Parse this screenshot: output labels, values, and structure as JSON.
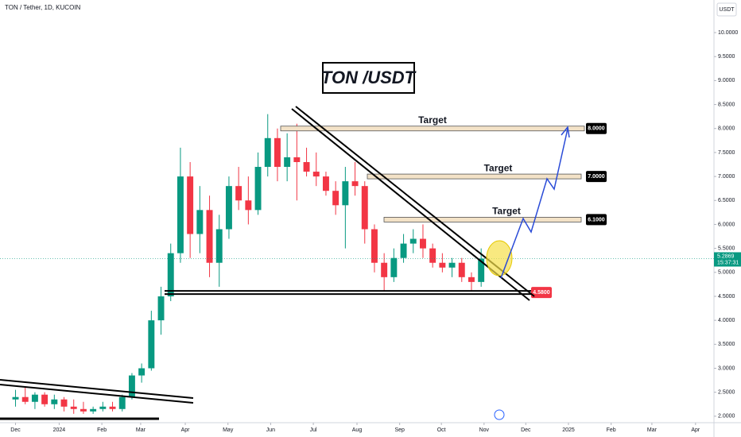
{
  "chart_data": {
    "type": "candlestick",
    "title": "TON / Tether, 1D, KUCOIN",
    "annotation": "TON /USDT",
    "currency": "USDT",
    "categories": [
      null,
      null,
      null,
      null,
      null,
      null,
      null,
      null,
      null,
      null,
      null,
      null,
      null,
      null,
      null,
      null,
      null,
      null,
      null,
      null,
      null,
      null,
      null,
      null,
      null,
      null,
      null,
      null,
      null,
      null,
      null,
      null,
      null,
      null,
      null,
      null,
      null,
      null,
      null,
      null,
      null,
      null,
      null,
      null,
      null,
      null,
      null,
      null,
      null
    ],
    "open": [
      2.35,
      2.4,
      2.3,
      2.45,
      2.25,
      2.35,
      2.2,
      2.15,
      2.1,
      2.15,
      2.2,
      2.15,
      2.4,
      2.85,
      3.0,
      4.0,
      4.5,
      5.4,
      7.0,
      5.8,
      6.3,
      5.2,
      5.9,
      6.8,
      6.5,
      6.3,
      7.2,
      7.8,
      7.2,
      7.4,
      7.3,
      7.1,
      7.0,
      6.7,
      6.4,
      6.9,
      6.8,
      5.9,
      5.2,
      4.9,
      5.3,
      5.6,
      5.7,
      5.5,
      5.2,
      5.1,
      5.2,
      4.9,
      4.8
    ],
    "high": [
      2.55,
      2.6,
      2.5,
      2.5,
      2.45,
      2.4,
      2.35,
      2.3,
      2.2,
      2.3,
      2.3,
      2.45,
      2.9,
      3.1,
      4.2,
      4.7,
      5.6,
      7.6,
      7.3,
      6.8,
      6.6,
      6.2,
      7.0,
      7.2,
      7.0,
      7.5,
      8.3,
      8.0,
      7.9,
      8.1,
      7.6,
      7.5,
      7.1,
      6.9,
      7.2,
      7.3,
      6.9,
      6.0,
      5.4,
      5.5,
      5.8,
      5.9,
      6.0,
      5.6,
      5.4,
      5.3,
      5.3,
      5.0,
      5.5
    ],
    "low": [
      2.2,
      2.25,
      2.15,
      2.2,
      2.15,
      2.1,
      2.05,
      2.05,
      2.05,
      2.1,
      2.1,
      2.1,
      2.35,
      2.7,
      2.95,
      3.7,
      4.4,
      5.2,
      5.3,
      5.4,
      4.9,
      4.7,
      5.7,
      6.3,
      6.0,
      6.2,
      7.0,
      6.9,
      6.9,
      6.5,
      7.0,
      6.8,
      6.6,
      6.2,
      5.5,
      6.6,
      5.6,
      5.0,
      4.6,
      4.8,
      5.2,
      5.4,
      5.3,
      5.1,
      5.0,
      4.9,
      4.8,
      4.6,
      4.7
    ],
    "close": [
      2.4,
      2.3,
      2.45,
      2.25,
      2.35,
      2.2,
      2.15,
      2.1,
      2.15,
      2.2,
      2.15,
      2.4,
      2.85,
      3.0,
      4.0,
      4.5,
      5.4,
      7.0,
      5.8,
      6.3,
      5.2,
      5.9,
      6.8,
      6.5,
      6.3,
      7.2,
      7.8,
      7.2,
      7.4,
      7.3,
      7.1,
      7.0,
      6.7,
      6.4,
      6.9,
      6.8,
      5.9,
      5.2,
      4.9,
      5.3,
      5.6,
      5.7,
      5.5,
      5.2,
      5.1,
      5.2,
      4.9,
      4.8,
      5.2869
    ],
    "up_color": "#089981",
    "down_color": "#f23645",
    "xlim": [
      -1.6,
      72
    ],
    "xticks": [
      {
        "value": 0,
        "label": "Dec"
      },
      {
        "value": 4.5,
        "label": "2024"
      },
      {
        "value": 8.9,
        "label": "Feb"
      },
      {
        "value": 12.9,
        "label": "Mar"
      },
      {
        "value": 17.5,
        "label": "Apr"
      },
      {
        "value": 21.9,
        "label": "May"
      },
      {
        "value": 26.3,
        "label": "Jun"
      },
      {
        "value": 30.7,
        "label": "Jul"
      },
      {
        "value": 35.2,
        "label": "Aug"
      },
      {
        "value": 39.6,
        "label": "Sep"
      },
      {
        "value": 43.9,
        "label": "Oct"
      },
      {
        "value": 48.3,
        "label": "Nov"
      },
      {
        "value": 52.6,
        "label": "Dec"
      },
      {
        "value": 57,
        "label": "2025"
      },
      {
        "value": 61.4,
        "label": "Feb"
      },
      {
        "value": 65.6,
        "label": "Mar"
      },
      {
        "value": 70.1,
        "label": "Apr"
      }
    ],
    "ylim": [
      1.865,
      10.68
    ],
    "yticks": [
      {
        "value": 2,
        "label": "2.0000"
      },
      {
        "value": 2.5,
        "label": "2.5000"
      },
      {
        "value": 3,
        "label": "3.0000"
      },
      {
        "value": 3.5,
        "label": "3.5000"
      },
      {
        "value": 4,
        "label": "4.0000"
      },
      {
        "value": 4.5,
        "label": "4.5000"
      },
      {
        "value": 5,
        "label": "5.0000"
      },
      {
        "value": 5.5,
        "label": "5.5000"
      },
      {
        "value": 6,
        "label": "6.0000"
      },
      {
        "value": 6.5,
        "label": "6.5000"
      },
      {
        "value": 7,
        "label": "7.0000"
      },
      {
        "value": 7.5,
        "label": "7.5000"
      },
      {
        "value": 8,
        "label": "8.0000"
      },
      {
        "value": 8.5,
        "label": "8.5000"
      },
      {
        "value": 9,
        "label": "9.0000"
      },
      {
        "value": 9.5,
        "label": "9.5000"
      },
      {
        "value": 10,
        "label": "10.0000"
      }
    ],
    "last_price": {
      "value": 5.2869,
      "label": "5.2869",
      "countdown": "15:37:31"
    },
    "targets": [
      {
        "name": "Target",
        "value": 8,
        "label": "8.0000"
      },
      {
        "name": "Target",
        "value": 7,
        "label": "7.0000"
      },
      {
        "name": "Target",
        "value": 6.1,
        "label": "6.1000"
      }
    ],
    "support": {
      "value": 4.58,
      "label": "4.5800"
    }
  }
}
